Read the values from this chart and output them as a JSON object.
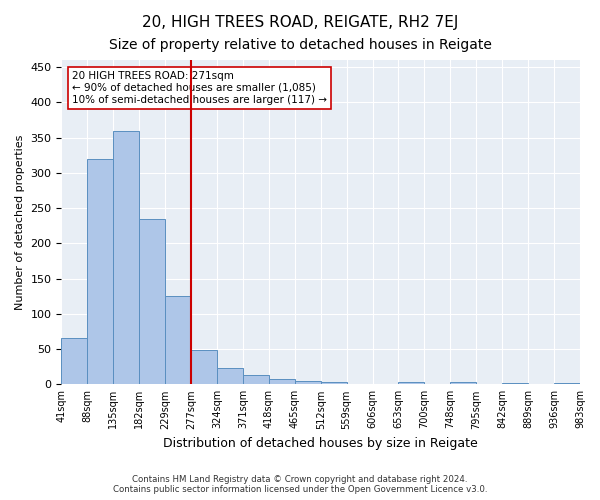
{
  "title": "20, HIGH TREES ROAD, REIGATE, RH2 7EJ",
  "subtitle": "Size of property relative to detached houses in Reigate",
  "xlabel": "Distribution of detached houses by size in Reigate",
  "ylabel": "Number of detached properties",
  "footnote1": "Contains HM Land Registry data © Crown copyright and database right 2024.",
  "footnote2": "Contains public sector information licensed under the Open Government Licence v3.0.",
  "bin_labels": [
    "41sqm",
    "88sqm",
    "135sqm",
    "182sqm",
    "229sqm",
    "277sqm",
    "324sqm",
    "371sqm",
    "418sqm",
    "465sqm",
    "512sqm",
    "559sqm",
    "606sqm",
    "653sqm",
    "700sqm",
    "748sqm",
    "795sqm",
    "842sqm",
    "889sqm",
    "936sqm",
    "983sqm"
  ],
  "bar_values": [
    65,
    320,
    360,
    235,
    125,
    48,
    23,
    13,
    8,
    5,
    3,
    1,
    0,
    3,
    0,
    3,
    0,
    2,
    0,
    2
  ],
  "bar_color": "#aec6e8",
  "bar_edge_color": "#5a8fc0",
  "vline_color": "#cc0000",
  "annotation_text": "20 HIGH TREES ROAD: 271sqm\n← 90% of detached houses are smaller (1,085)\n10% of semi-detached houses are larger (117) →",
  "annotation_box_color": "#ffffff",
  "annotation_box_edge_color": "#cc0000",
  "ylim": [
    0,
    460
  ],
  "yticks": [
    0,
    50,
    100,
    150,
    200,
    250,
    300,
    350,
    400,
    450
  ],
  "background_color": "#e8eef5",
  "title_fontsize": 11,
  "subtitle_fontsize": 10
}
